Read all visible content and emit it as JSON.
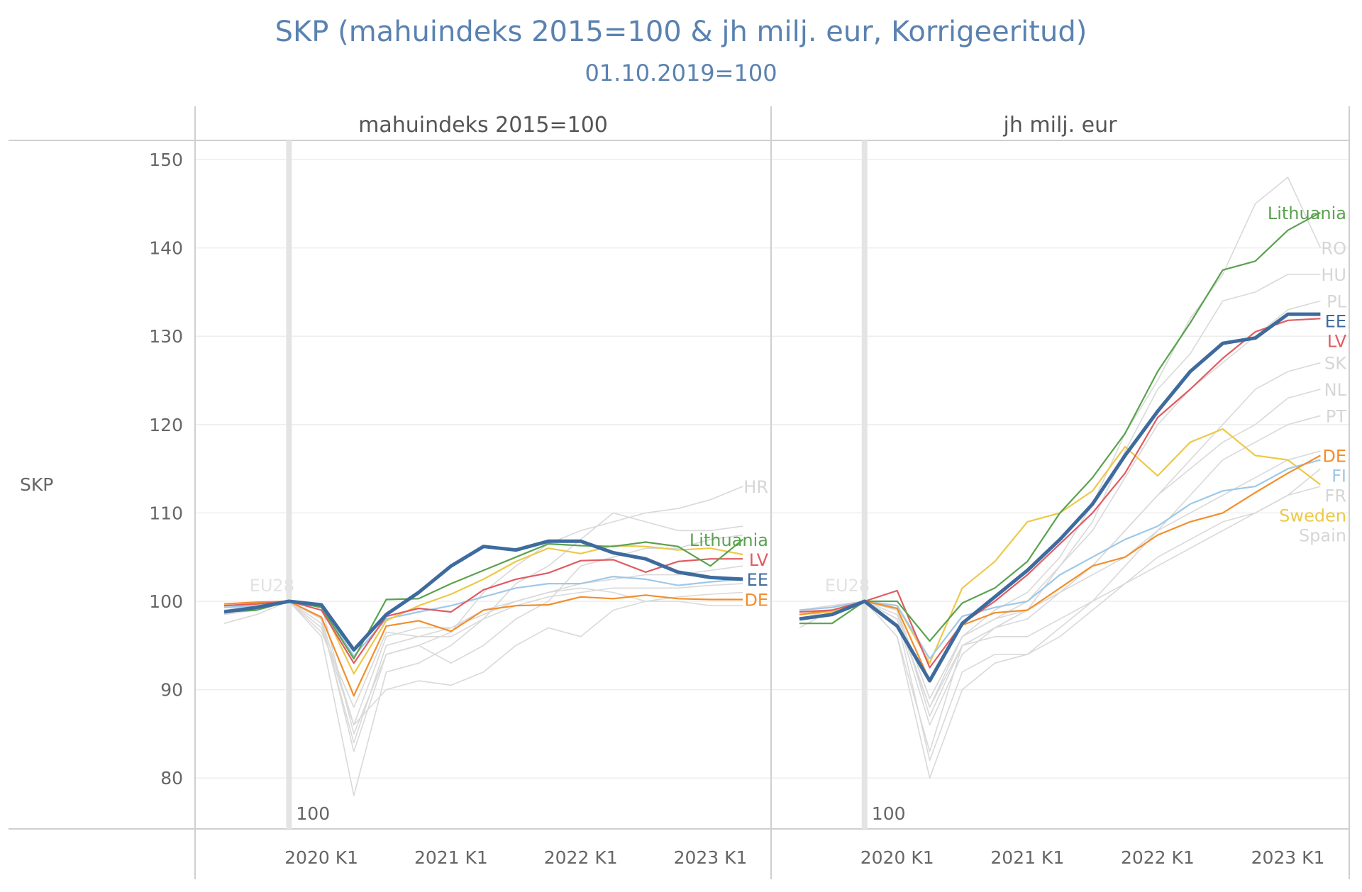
{
  "chart_data": {
    "type": "line",
    "title": "SKP (mahuindeks 2015=100 & jh milj. eur, Korrigeeritud)",
    "subtitle": "01.10.2019=100",
    "ylabel": "SKP",
    "ylim": [
      75,
      152
    ],
    "yticks": [
      "150",
      "140",
      "130",
      "120",
      "110",
      "100",
      "90",
      "80"
    ],
    "x": [
      "2019 K2",
      "2019 K3",
      "2019 K4",
      "2020 K1",
      "2020 K2",
      "2020 K3",
      "2020 K4",
      "2021 K1",
      "2021 K2",
      "2021 K3",
      "2021 K4",
      "2022 K1",
      "2022 K2",
      "2022 K3",
      "2022 K4",
      "2023 K1",
      "2023 K2"
    ],
    "xtick_labels": [
      "2020 K1",
      "2021 K1",
      "2022 K1",
      "2023 K1"
    ],
    "reference_line": {
      "x": "2019 K4",
      "label": "100"
    },
    "grid": true,
    "colors": {
      "EE": "#3e6b9e",
      "LV": "#e15b61",
      "Lithuania": "#5aa24f",
      "DE": "#f28e2b",
      "FI": "#9ec9e8",
      "Sweden": "#edc948",
      "other": "#d9d9d9"
    },
    "panels": [
      {
        "header": "mahuindeks 2015=100",
        "series": [
          {
            "name": "HR",
            "highlight": false,
            "values": [
              99,
              99.5,
              100,
              99.6,
              85,
              94,
              95,
              96.5,
              101,
              104,
              106.5,
              108,
              109,
              110,
              110.5,
              111.5,
              113
            ]
          },
          {
            "name": "",
            "highlight": false,
            "values": [
              97.5,
              98.5,
              100,
              96,
              78,
              92,
              93,
              95,
              98,
              102,
              104,
              107,
              110,
              109,
              108,
              108,
              108.5
            ]
          },
          {
            "name": "",
            "highlight": false,
            "values": [
              98.5,
              99,
              100,
              98,
              83,
              94,
              95,
              93,
              95,
              98,
              100,
              104,
              105,
              106,
              106,
              107,
              107.5
            ]
          },
          {
            "name": "",
            "highlight": false,
            "values": [
              99.5,
              99.8,
              100,
              97,
              86,
              96,
              97,
              97,
              99,
              100,
              101,
              102,
              102.5,
              103,
              103,
              103.5,
              104
            ]
          },
          {
            "name": "EU28",
            "highlight": false,
            "values": [
              99.3,
              99.6,
              100,
              96.5,
              88,
              96.5,
              96,
              96,
              98,
              99.5,
              100.5,
              101,
              101.5,
              101.5,
              101.5,
              101.8,
              102
            ]
          },
          {
            "name": "",
            "highlight": false,
            "values": [
              99,
              99.5,
              100,
              98,
              86,
              90,
              91,
              90.5,
              92,
              95,
              97,
              96,
              99,
              100,
              100.5,
              100.8,
              101
            ]
          },
          {
            "name": "",
            "highlight": false,
            "values": [
              99.7,
              99.8,
              100,
              97.5,
              84,
              95,
              96,
              97,
              98.5,
              100,
              101,
              101.5,
              101,
              100,
              100,
              99.5,
              99.5
            ]
          },
          {
            "name": "FI",
            "highlight": true,
            "label": false,
            "values": [
              99.3,
              99.5,
              100,
              99.4,
              93.8,
              98,
              98.8,
              99.5,
              100.5,
              101.5,
              102,
              102,
              102.8,
              102.5,
              101.8,
              102.2,
              102.5
            ]
          },
          {
            "name": "Sweden",
            "highlight": true,
            "label": false,
            "values": [
              99.5,
              99.7,
              100,
              99.5,
              91.8,
              97.8,
              99.5,
              100.8,
              102.5,
              104.5,
              106,
              105.4,
              106.3,
              106.2,
              105.8,
              106,
              105.3
            ]
          },
          {
            "name": "DE",
            "highlight": true,
            "label": true,
            "values": [
              99.7,
              99.9,
              100,
              98.2,
              89.3,
              97.2,
              97.8,
              96.6,
              99,
              99.5,
              99.6,
              100.5,
              100.3,
              100.7,
              100.3,
              100.2,
              100.2
            ]
          },
          {
            "name": "LV",
            "highlight": true,
            "label": true,
            "values": [
              99.5,
              99.7,
              100,
              99,
              93,
              98.3,
              99.2,
              98.8,
              101.3,
              102.5,
              103.2,
              104.6,
              104.7,
              103.3,
              104.5,
              104.8,
              104.8
            ]
          },
          {
            "name": "Lithuania",
            "highlight": true,
            "label": true,
            "values": [
              98.8,
              99,
              100,
              99.3,
              93.5,
              100.2,
              100.3,
              102,
              103.5,
              105,
              106.5,
              106.3,
              106.2,
              106.7,
              106.2,
              104,
              107
            ]
          },
          {
            "name": "EE",
            "highlight": true,
            "label": true,
            "values": [
              98.8,
              99.3,
              100,
              99.6,
              94.5,
              98.5,
              101,
              104,
              106.2,
              105.8,
              106.8,
              106.8,
              105.5,
              104.8,
              103.3,
              102.7,
              102.5
            ]
          }
        ]
      },
      {
        "header": "jh milj. eur",
        "series": [
          {
            "name": "RO",
            "highlight": false,
            "values": [
              98,
              99,
              100,
              99,
              89,
              96,
              99,
              101,
              105,
              111,
              119,
              125,
              132,
              137,
              145,
              148,
              140
            ]
          },
          {
            "name": "HU",
            "highlight": false,
            "values": [
              97,
              99,
              100,
              99,
              87,
              95,
              97,
              99,
              104,
              109,
              117,
              124,
              128,
              134,
              135,
              137,
              137
            ]
          },
          {
            "name": "PL",
            "highlight": false,
            "values": [
              98,
              99,
              100,
              99,
              89,
              96,
              98,
              100,
              104,
              108,
              114,
              120,
              124,
              127,
              130,
              133,
              134
            ]
          },
          {
            "name": "SK",
            "highlight": false,
            "values": [
              98,
              99,
              100,
              98,
              86,
              94,
              97,
              98,
              101,
              104,
              108,
              112,
              116,
              120,
              124,
              126,
              127
            ]
          },
          {
            "name": "NL",
            "highlight": false,
            "values": [
              99,
              99.5,
              100,
              98.5,
              88,
              95,
              97,
              99,
              101,
              104,
              108,
              112,
              115,
              118,
              120,
              123,
              124
            ]
          },
          {
            "name": "PT",
            "highlight": false,
            "values": [
              98,
              99,
              100,
              98,
              82,
              92,
              94,
              94,
              97,
              100,
              104,
              108,
              112,
              116,
              118,
              120,
              121
            ]
          },
          {
            "name": "FR",
            "highlight": false,
            "values": [
              99,
              99.5,
              100,
              96,
              83,
              95,
              96,
              96,
              98,
              100,
              102,
              104,
              106,
              108,
              110,
              112,
              115
            ]
          },
          {
            "name": "Spain",
            "highlight": false,
            "values": [
              99,
              99.5,
              100,
              96,
              80,
              90,
              93,
              94,
              96,
              99,
              102,
              105,
              107,
              109,
              110,
              112,
              113
            ]
          },
          {
            "name": "EU28",
            "highlight": false,
            "values": [
              99,
              99.5,
              100,
              98,
              88,
              96,
              98,
              99,
              101,
              103,
              105,
              108,
              110,
              112,
              114,
              116,
              117
            ]
          },
          {
            "name": "Sweden",
            "highlight": true,
            "label": true,
            "values": [
              98.5,
              98.8,
              100,
              99.5,
              93,
              101.5,
              104.5,
              109,
              110,
              112.5,
              117.5,
              114.2,
              118,
              119.5,
              116.5,
              116,
              113.2
            ]
          },
          {
            "name": "FI",
            "highlight": true,
            "label": true,
            "values": [
              99,
              99.3,
              100,
              99.5,
              93.5,
              98.3,
              99.3,
              100,
              103,
              105,
              107,
              108.5,
              111,
              112.5,
              113,
              115,
              116
            ]
          },
          {
            "name": "DE",
            "highlight": true,
            "label": true,
            "values": [
              98.5,
              99,
              100,
              99.2,
              91,
              97.3,
              98.7,
              99,
              101.5,
              104,
              105,
              107.5,
              109,
              110,
              112.3,
              114.5,
              116.5
            ]
          },
          {
            "name": "LV",
            "highlight": true,
            "label": true,
            "values": [
              98.8,
              99,
              100,
              101.2,
              92.5,
              97.5,
              100,
              103,
              106.5,
              110,
              114.5,
              120.8,
              124,
              127.5,
              130.5,
              131.8,
              132
            ]
          },
          {
            "name": "Lithuania",
            "highlight": true,
            "label": true,
            "values": [
              97.5,
              97.5,
              100,
              100,
              95.5,
              99.8,
              101.5,
              104.5,
              110,
              114,
              119,
              126,
              131.5,
              137.5,
              138.5,
              142,
              144
            ]
          },
          {
            "name": "EE",
            "highlight": true,
            "label": true,
            "values": [
              98,
              98.5,
              100,
              97.2,
              91,
              97.5,
              100.5,
              103.5,
              107,
              111,
              116.5,
              121.5,
              126,
              129.2,
              129.8,
              132.5,
              132.5
            ]
          }
        ]
      }
    ]
  }
}
